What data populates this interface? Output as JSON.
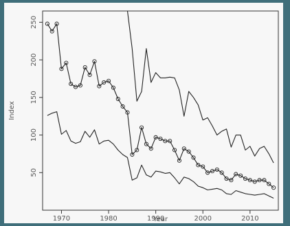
{
  "chart_data": {
    "type": "line",
    "xlabel": "Year",
    "ylabel": "Index",
    "xlim": [
      1966,
      2016
    ],
    "ylim": [
      0,
      265
    ],
    "x_ticks": [
      1970,
      1980,
      1990,
      2000,
      2010
    ],
    "y_ticks": [
      50,
      100,
      150,
      200,
      250
    ],
    "series": [
      {
        "markers": false,
        "x": [
          1984,
          1985,
          1986,
          1987,
          1988,
          1989,
          1990,
          1991,
          1992,
          1993,
          1994,
          1995,
          1996,
          1997,
          1998,
          1999,
          2000,
          2001,
          2002,
          2003,
          2004,
          2005,
          2006,
          2007,
          2008,
          2009,
          2010,
          2011,
          2012,
          2013,
          2014,
          2015
        ],
        "y": [
          265,
          215,
          145,
          158,
          215,
          170,
          183,
          176,
          176,
          177,
          176,
          160,
          125,
          158,
          150,
          140,
          120,
          123,
          112,
          100,
          105,
          108,
          84,
          100,
          100,
          80,
          85,
          72,
          82,
          85,
          75,
          63
        ]
      },
      {
        "markers": true,
        "x": [
          1967,
          1968,
          1969,
          1970,
          1971,
          1972,
          1973,
          1974,
          1975,
          1976,
          1977,
          1978,
          1979,
          1980,
          1981,
          1982,
          1983,
          1984,
          1985,
          1986,
          1987,
          1988,
          1989,
          1990,
          1991,
          1992,
          1993,
          1994,
          1995,
          1996,
          1997,
          1998,
          1999,
          2000,
          2001,
          2002,
          2003,
          2004,
          2005,
          2006,
          2007,
          2008,
          2009,
          2010,
          2011,
          2012,
          2013,
          2014,
          2015
        ],
        "y": [
          248,
          238,
          248,
          188,
          196,
          168,
          164,
          166,
          190,
          180,
          198,
          165,
          170,
          172,
          163,
          148,
          138,
          130,
          74,
          80,
          110,
          88,
          82,
          97,
          95,
          92,
          92,
          80,
          66,
          82,
          78,
          70,
          60,
          58,
          50,
          52,
          54,
          50,
          42,
          40,
          48,
          46,
          42,
          40,
          38,
          40,
          40,
          35,
          30
        ]
      },
      {
        "markers": false,
        "x": [
          1967,
          1968,
          1969,
          1970,
          1971,
          1972,
          1973,
          1974,
          1975,
          1976,
          1977,
          1978,
          1979,
          1980,
          1981,
          1982,
          1983,
          1984,
          1985,
          1986,
          1987,
          1988,
          1989,
          1990,
          1991,
          1992,
          1993,
          1994,
          1995,
          1996,
          1997,
          1998,
          1999,
          2000,
          2001,
          2002,
          2003,
          2004,
          2005,
          2006,
          2007,
          2008,
          2009,
          2010,
          2011,
          2012,
          2013,
          2014,
          2015
        ],
        "y": [
          126,
          129,
          131,
          101,
          106,
          92,
          89,
          91,
          105,
          97,
          107,
          88,
          92,
          93,
          88,
          80,
          74,
          70,
          40,
          43,
          60,
          47,
          44,
          52,
          51,
          49,
          50,
          43,
          35,
          44,
          42,
          38,
          32,
          30,
          27,
          28,
          29,
          27,
          22,
          21,
          26,
          24,
          22,
          21,
          20,
          21,
          22,
          19,
          16
        ]
      }
    ]
  }
}
